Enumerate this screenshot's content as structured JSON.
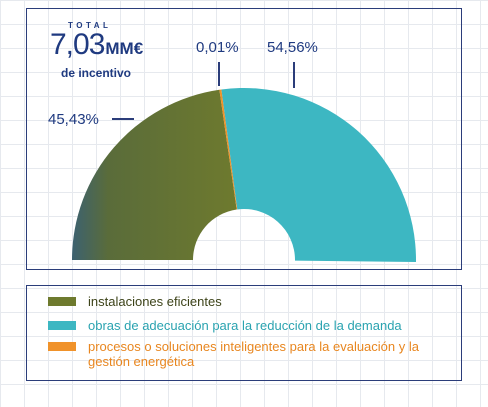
{
  "total": {
    "label": "TOTAL",
    "value": "7,03",
    "unit": "MM€",
    "sub": "de incentivo"
  },
  "chart_data": {
    "type": "pie",
    "variant": "half-donut",
    "title": "",
    "slices": [
      {
        "name": "instalaciones eficientes",
        "value": 45.43,
        "label": "45,43%",
        "color": "#6e7a2e"
      },
      {
        "name": "procesos o soluciones inteligentes para la evaluación y la gestión energética",
        "value": 0.01,
        "label": "0,01%",
        "color": "#f0922a"
      },
      {
        "name": "obras de adecuación para la reducción de la demanda",
        "value": 54.56,
        "label": "54,56%",
        "color": "#3db7c2"
      }
    ],
    "legend_position": "bottom"
  },
  "legend": {
    "items": [
      {
        "label": "instalaciones eficientes",
        "color": "#6e7a2e",
        "text_color": "#3d4319"
      },
      {
        "label": "obras de adecuación para la reducción de la demanda",
        "color": "#3db7c2",
        "text_color": "#2aa3b0"
      },
      {
        "label": "procesos o soluciones inteligentes para la evaluación y la gestión energética",
        "color": "#f0922a",
        "text_color": "#e8861f"
      }
    ]
  },
  "colors": {
    "frame": "#2b3d7a",
    "label_text": "#1f3a80"
  }
}
